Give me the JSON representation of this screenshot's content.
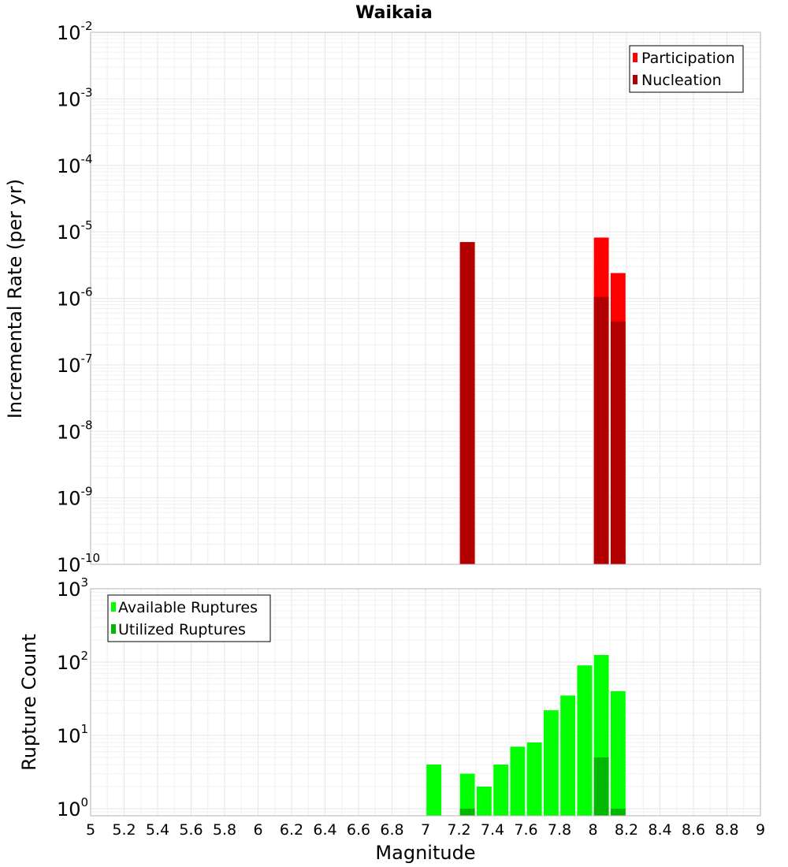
{
  "chart_data": [
    {
      "type": "bar",
      "title": "Waikaia",
      "xlabel": "Magnitude",
      "ylabel": "Incremental Rate (per yr)",
      "yscale": "log",
      "xlim": [
        5,
        9
      ],
      "ylim": [
        1e-10,
        0.01
      ],
      "bin_width": 0.1,
      "legend_position": "top-right",
      "series": [
        {
          "name": "Participation",
          "color": "#ff0000",
          "x": [
            7.25,
            8.05,
            8.15
          ],
          "values": [
            7e-06,
            8.2e-06,
            2.4e-06
          ]
        },
        {
          "name": "Nucleation",
          "color": "#b20000",
          "x": [
            7.25,
            8.05,
            8.15
          ],
          "values": [
            7e-06,
            1.05e-06,
            4.5e-07
          ]
        }
      ],
      "y_ticks": [
        {
          "base": "10",
          "exp": "-2",
          "value": 0.01
        },
        {
          "base": "10",
          "exp": "-3",
          "value": 0.001
        },
        {
          "base": "10",
          "exp": "-4",
          "value": 0.0001
        },
        {
          "base": "10",
          "exp": "-5",
          "value": 1e-05
        },
        {
          "base": "10",
          "exp": "-6",
          "value": 1e-06
        },
        {
          "base": "10",
          "exp": "-7",
          "value": 1e-07
        },
        {
          "base": "10",
          "exp": "-8",
          "value": 1e-08
        },
        {
          "base": "10",
          "exp": "-9",
          "value": 1e-09
        },
        {
          "base": "10",
          "exp": "-10",
          "value": 1e-10
        }
      ]
    },
    {
      "type": "bar",
      "xlabel": "Magnitude",
      "ylabel": "Rupture Count",
      "yscale": "log",
      "xlim": [
        5,
        9
      ],
      "ylim": [
        0.8,
        1000
      ],
      "bin_width": 0.1,
      "legend_position": "top-left",
      "series": [
        {
          "name": "Available Ruptures",
          "color": "#00ff00",
          "x": [
            7.05,
            7.25,
            7.35,
            7.45,
            7.55,
            7.65,
            7.75,
            7.85,
            7.95,
            8.05,
            8.15
          ],
          "values": [
            4,
            3,
            2,
            4,
            7,
            8,
            22,
            35,
            90,
            125,
            40
          ]
        },
        {
          "name": "Utilized Ruptures",
          "color": "#00b800",
          "x": [
            7.25,
            8.05,
            8.15
          ],
          "values": [
            1,
            5,
            1
          ]
        }
      ],
      "y_ticks": [
        {
          "base": "10",
          "exp": "3",
          "value": 1000
        },
        {
          "base": "10",
          "exp": "2",
          "value": 100
        },
        {
          "base": "10",
          "exp": "1",
          "value": 10
        },
        {
          "base": "10",
          "exp": "0",
          "value": 1
        }
      ],
      "x_ticks": [
        "5",
        "5.2",
        "5.4",
        "5.6",
        "5.8",
        "6",
        "6.2",
        "6.4",
        "6.6",
        "6.8",
        "7",
        "7.2",
        "7.4",
        "7.6",
        "7.8",
        "8",
        "8.2",
        "8.4",
        "8.6",
        "8.8",
        "9"
      ]
    }
  ]
}
